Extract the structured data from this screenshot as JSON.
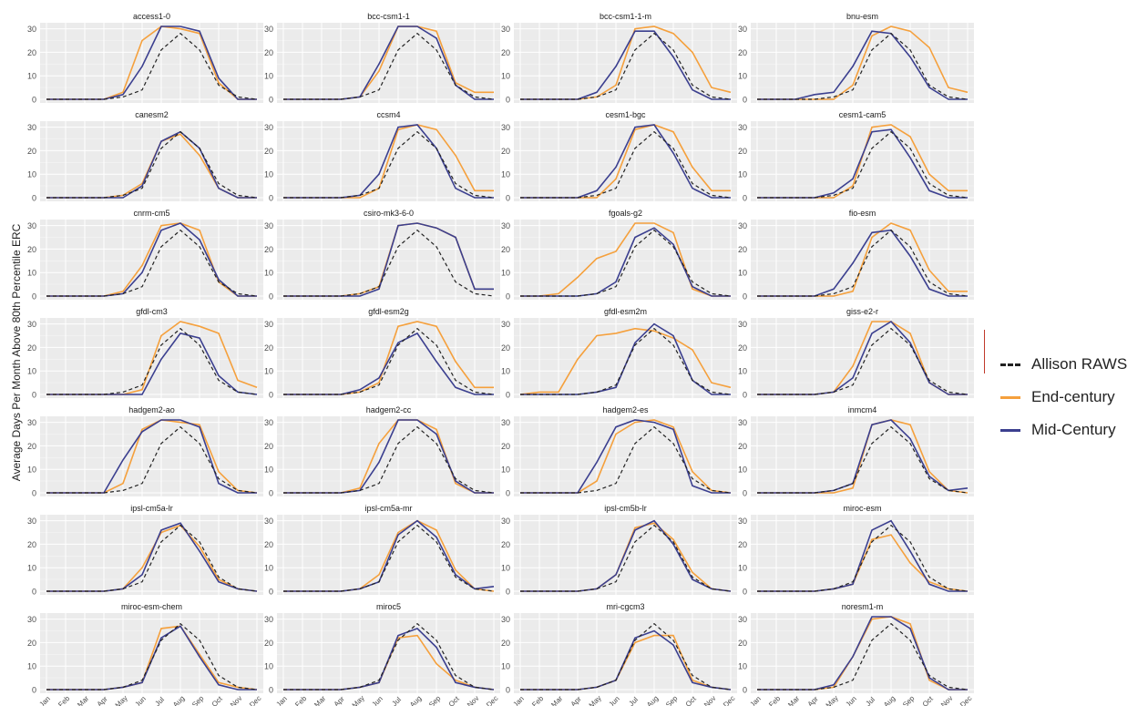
{
  "ylabel": "Average Days Per Month Above 80th Percentile ERC",
  "months": [
    "Jan",
    "Feb",
    "Mar",
    "Apr",
    "May",
    "Jun",
    "Jul",
    "Aug",
    "Sep",
    "Oct",
    "Nov",
    "Dec"
  ],
  "legend": [
    {
      "label": "Allison RAWS",
      "color": "#222222",
      "dashed": true
    },
    {
      "label": "End-century",
      "color": "#f5a03c",
      "dashed": false
    },
    {
      "label": "Mid-Century",
      "color": "#3b3f8f",
      "dashed": false
    }
  ],
  "chart_data": {
    "type": "line",
    "facets": 28,
    "ylim": [
      0,
      31
    ],
    "yticks": [
      0,
      10,
      20,
      30
    ],
    "xlabel": "",
    "ylabel": "Average Days Per Month Above 80th Percentile ERC",
    "grid": true,
    "legend_position": "right",
    "observed_series_name": "Allison RAWS",
    "observed": [
      0,
      0,
      0,
      0,
      1,
      4,
      21,
      28,
      21,
      6,
      1,
      0
    ],
    "panels": [
      {
        "title": "access1-0",
        "end": [
          0,
          0,
          0,
          0,
          3,
          25,
          31,
          30,
          28,
          7,
          0,
          0
        ],
        "mid": [
          0,
          0,
          0,
          0,
          2,
          14,
          31,
          31,
          29,
          9,
          0,
          0
        ]
      },
      {
        "title": "bcc-csm1-1",
        "end": [
          0,
          0,
          0,
          0,
          1,
          12,
          31,
          31,
          29,
          7,
          3,
          3
        ],
        "mid": [
          0,
          0,
          0,
          0,
          1,
          15,
          31,
          31,
          26,
          6,
          0,
          0
        ]
      },
      {
        "title": "bcc-csm1-1-m",
        "end": [
          0,
          0,
          0,
          0,
          1,
          6,
          30,
          31,
          28,
          20,
          5,
          3
        ],
        "mid": [
          0,
          0,
          0,
          0,
          3,
          14,
          29,
          29,
          18,
          4,
          0,
          0
        ]
      },
      {
        "title": "bnu-esm",
        "end": [
          0,
          0,
          0,
          0,
          0,
          6,
          27,
          31,
          29,
          22,
          5,
          3
        ],
        "mid": [
          0,
          0,
          0,
          2,
          3,
          14,
          29,
          28,
          18,
          5,
          0,
          0
        ]
      },
      {
        "title": "canesm2",
        "end": [
          0,
          0,
          0,
          0,
          1,
          6,
          24,
          27,
          18,
          4,
          0,
          0
        ],
        "mid": [
          0,
          0,
          0,
          0,
          0,
          5,
          24,
          28,
          21,
          4,
          0,
          0
        ]
      },
      {
        "title": "ccsm4",
        "end": [
          0,
          0,
          0,
          0,
          0,
          4,
          29,
          31,
          29,
          18,
          3,
          3
        ],
        "mid": [
          0,
          0,
          0,
          0,
          1,
          10,
          30,
          31,
          21,
          4,
          0,
          0
        ]
      },
      {
        "title": "cesm1-bgc",
        "end": [
          0,
          0,
          0,
          0,
          0,
          8,
          29,
          31,
          28,
          13,
          3,
          3
        ],
        "mid": [
          0,
          0,
          0,
          0,
          3,
          13,
          30,
          31,
          19,
          4,
          0,
          0
        ]
      },
      {
        "title": "cesm1-cam5",
        "end": [
          0,
          0,
          0,
          0,
          0,
          5,
          30,
          31,
          26,
          10,
          3,
          3
        ],
        "mid": [
          0,
          0,
          0,
          0,
          2,
          8,
          28,
          29,
          17,
          3,
          0,
          0
        ]
      },
      {
        "title": "cnrm-cm5",
        "end": [
          0,
          0,
          0,
          0,
          2,
          13,
          30,
          31,
          28,
          6,
          0,
          0
        ],
        "mid": [
          0,
          0,
          0,
          0,
          1,
          10,
          28,
          31,
          24,
          7,
          0,
          0
        ]
      },
      {
        "title": "csiro-mk3-6-0",
        "end": [
          0,
          0,
          0,
          0,
          1,
          4,
          30,
          31,
          29,
          25,
          3,
          3
        ],
        "mid": [
          0,
          0,
          0,
          0,
          0,
          3,
          30,
          31,
          29,
          25,
          3,
          3
        ]
      },
      {
        "title": "fgoals-g2",
        "end": [
          0,
          0,
          1,
          8,
          16,
          19,
          31,
          31,
          27,
          3,
          0,
          0
        ],
        "mid": [
          0,
          0,
          0,
          0,
          1,
          6,
          25,
          29,
          22,
          4,
          0,
          0
        ]
      },
      {
        "title": "fio-esm",
        "end": [
          0,
          0,
          0,
          0,
          0,
          2,
          25,
          31,
          28,
          11,
          2,
          2
        ],
        "mid": [
          0,
          0,
          0,
          0,
          3,
          14,
          27,
          28,
          17,
          3,
          0,
          0
        ]
      },
      {
        "title": "gfdl-cm3",
        "end": [
          0,
          0,
          0,
          0,
          0,
          2,
          25,
          31,
          29,
          26,
          6,
          3
        ],
        "mid": [
          0,
          0,
          0,
          0,
          0,
          0,
          15,
          26,
          24,
          8,
          1,
          0
        ]
      },
      {
        "title": "gfdl-esm2g",
        "end": [
          0,
          0,
          0,
          0,
          1,
          5,
          29,
          31,
          29,
          14,
          3,
          3
        ],
        "mid": [
          0,
          0,
          0,
          0,
          2,
          7,
          22,
          26,
          14,
          3,
          0,
          0
        ]
      },
      {
        "title": "gfdl-esm2m",
        "end": [
          0,
          1,
          1,
          15,
          25,
          26,
          28,
          27,
          24,
          19,
          5,
          3
        ],
        "mid": [
          0,
          0,
          0,
          0,
          1,
          3,
          22,
          30,
          25,
          6,
          0,
          0
        ]
      },
      {
        "title": "giss-e2-r",
        "end": [
          0,
          0,
          0,
          0,
          1,
          12,
          31,
          31,
          26,
          5,
          0,
          0
        ],
        "mid": [
          0,
          0,
          0,
          0,
          1,
          7,
          26,
          31,
          22,
          5,
          0,
          0
        ]
      },
      {
        "title": "hadgem2-ao",
        "end": [
          0,
          0,
          0,
          0,
          4,
          27,
          31,
          30,
          29,
          9,
          1,
          0
        ],
        "mid": [
          0,
          0,
          0,
          0,
          14,
          26,
          31,
          31,
          28,
          4,
          0,
          0
        ]
      },
      {
        "title": "hadgem2-cc",
        "end": [
          0,
          0,
          0,
          0,
          2,
          21,
          31,
          31,
          27,
          4,
          0,
          0
        ],
        "mid": [
          0,
          0,
          0,
          0,
          1,
          13,
          31,
          31,
          25,
          5,
          0,
          0
        ]
      },
      {
        "title": "hadgem2-es",
        "end": [
          0,
          0,
          0,
          0,
          5,
          25,
          30,
          31,
          28,
          9,
          1,
          0
        ],
        "mid": [
          0,
          0,
          0,
          0,
          13,
          28,
          31,
          30,
          27,
          3,
          0,
          0
        ]
      },
      {
        "title": "inmcm4",
        "end": [
          0,
          0,
          0,
          0,
          0,
          2,
          29,
          31,
          29,
          9,
          1,
          0
        ],
        "mid": [
          0,
          0,
          0,
          0,
          1,
          4,
          29,
          31,
          23,
          7,
          1,
          2
        ]
      },
      {
        "title": "ipsl-cm5a-lr",
        "end": [
          0,
          0,
          0,
          0,
          1,
          10,
          25,
          28,
          19,
          5,
          1,
          0
        ],
        "mid": [
          0,
          0,
          0,
          0,
          1,
          7,
          26,
          29,
          17,
          4,
          1,
          0
        ]
      },
      {
        "title": "ipsl-cm5a-mr",
        "end": [
          0,
          0,
          0,
          0,
          1,
          7,
          25,
          30,
          26,
          9,
          1,
          0
        ],
        "mid": [
          0,
          0,
          0,
          0,
          1,
          4,
          24,
          30,
          23,
          7,
          1,
          2
        ]
      },
      {
        "title": "ipsl-cm5b-lr",
        "end": [
          0,
          0,
          0,
          0,
          1,
          7,
          27,
          29,
          22,
          8,
          1,
          0
        ],
        "mid": [
          0,
          0,
          0,
          0,
          1,
          7,
          26,
          30,
          20,
          5,
          1,
          0
        ]
      },
      {
        "title": "miroc-esm",
        "end": [
          0,
          0,
          0,
          0,
          1,
          3,
          22,
          24,
          12,
          4,
          1,
          0
        ],
        "mid": [
          0,
          0,
          0,
          0,
          1,
          3,
          26,
          30,
          17,
          3,
          0,
          0
        ]
      },
      {
        "title": "miroc-esm-chem",
        "end": [
          0,
          0,
          0,
          0,
          1,
          3,
          26,
          27,
          15,
          3,
          1,
          0
        ],
        "mid": [
          0,
          0,
          0,
          0,
          1,
          3,
          22,
          27,
          14,
          2,
          0,
          0
        ]
      },
      {
        "title": "miroc5",
        "end": [
          0,
          0,
          0,
          0,
          1,
          3,
          22,
          23,
          11,
          4,
          1,
          0
        ],
        "mid": [
          0,
          0,
          0,
          0,
          1,
          3,
          23,
          26,
          18,
          3,
          1,
          0
        ]
      },
      {
        "title": "mri-cgcm3",
        "end": [
          0,
          0,
          0,
          0,
          1,
          4,
          20,
          23,
          23,
          4,
          1,
          0
        ],
        "mid": [
          0,
          0,
          0,
          0,
          1,
          4,
          22,
          25,
          19,
          3,
          1,
          0
        ]
      },
      {
        "title": "noresm1-m",
        "end": [
          0,
          0,
          0,
          0,
          1,
          14,
          30,
          31,
          28,
          4,
          0,
          0
        ],
        "mid": [
          0,
          0,
          0,
          0,
          2,
          14,
          31,
          31,
          26,
          5,
          0,
          0
        ]
      }
    ]
  }
}
